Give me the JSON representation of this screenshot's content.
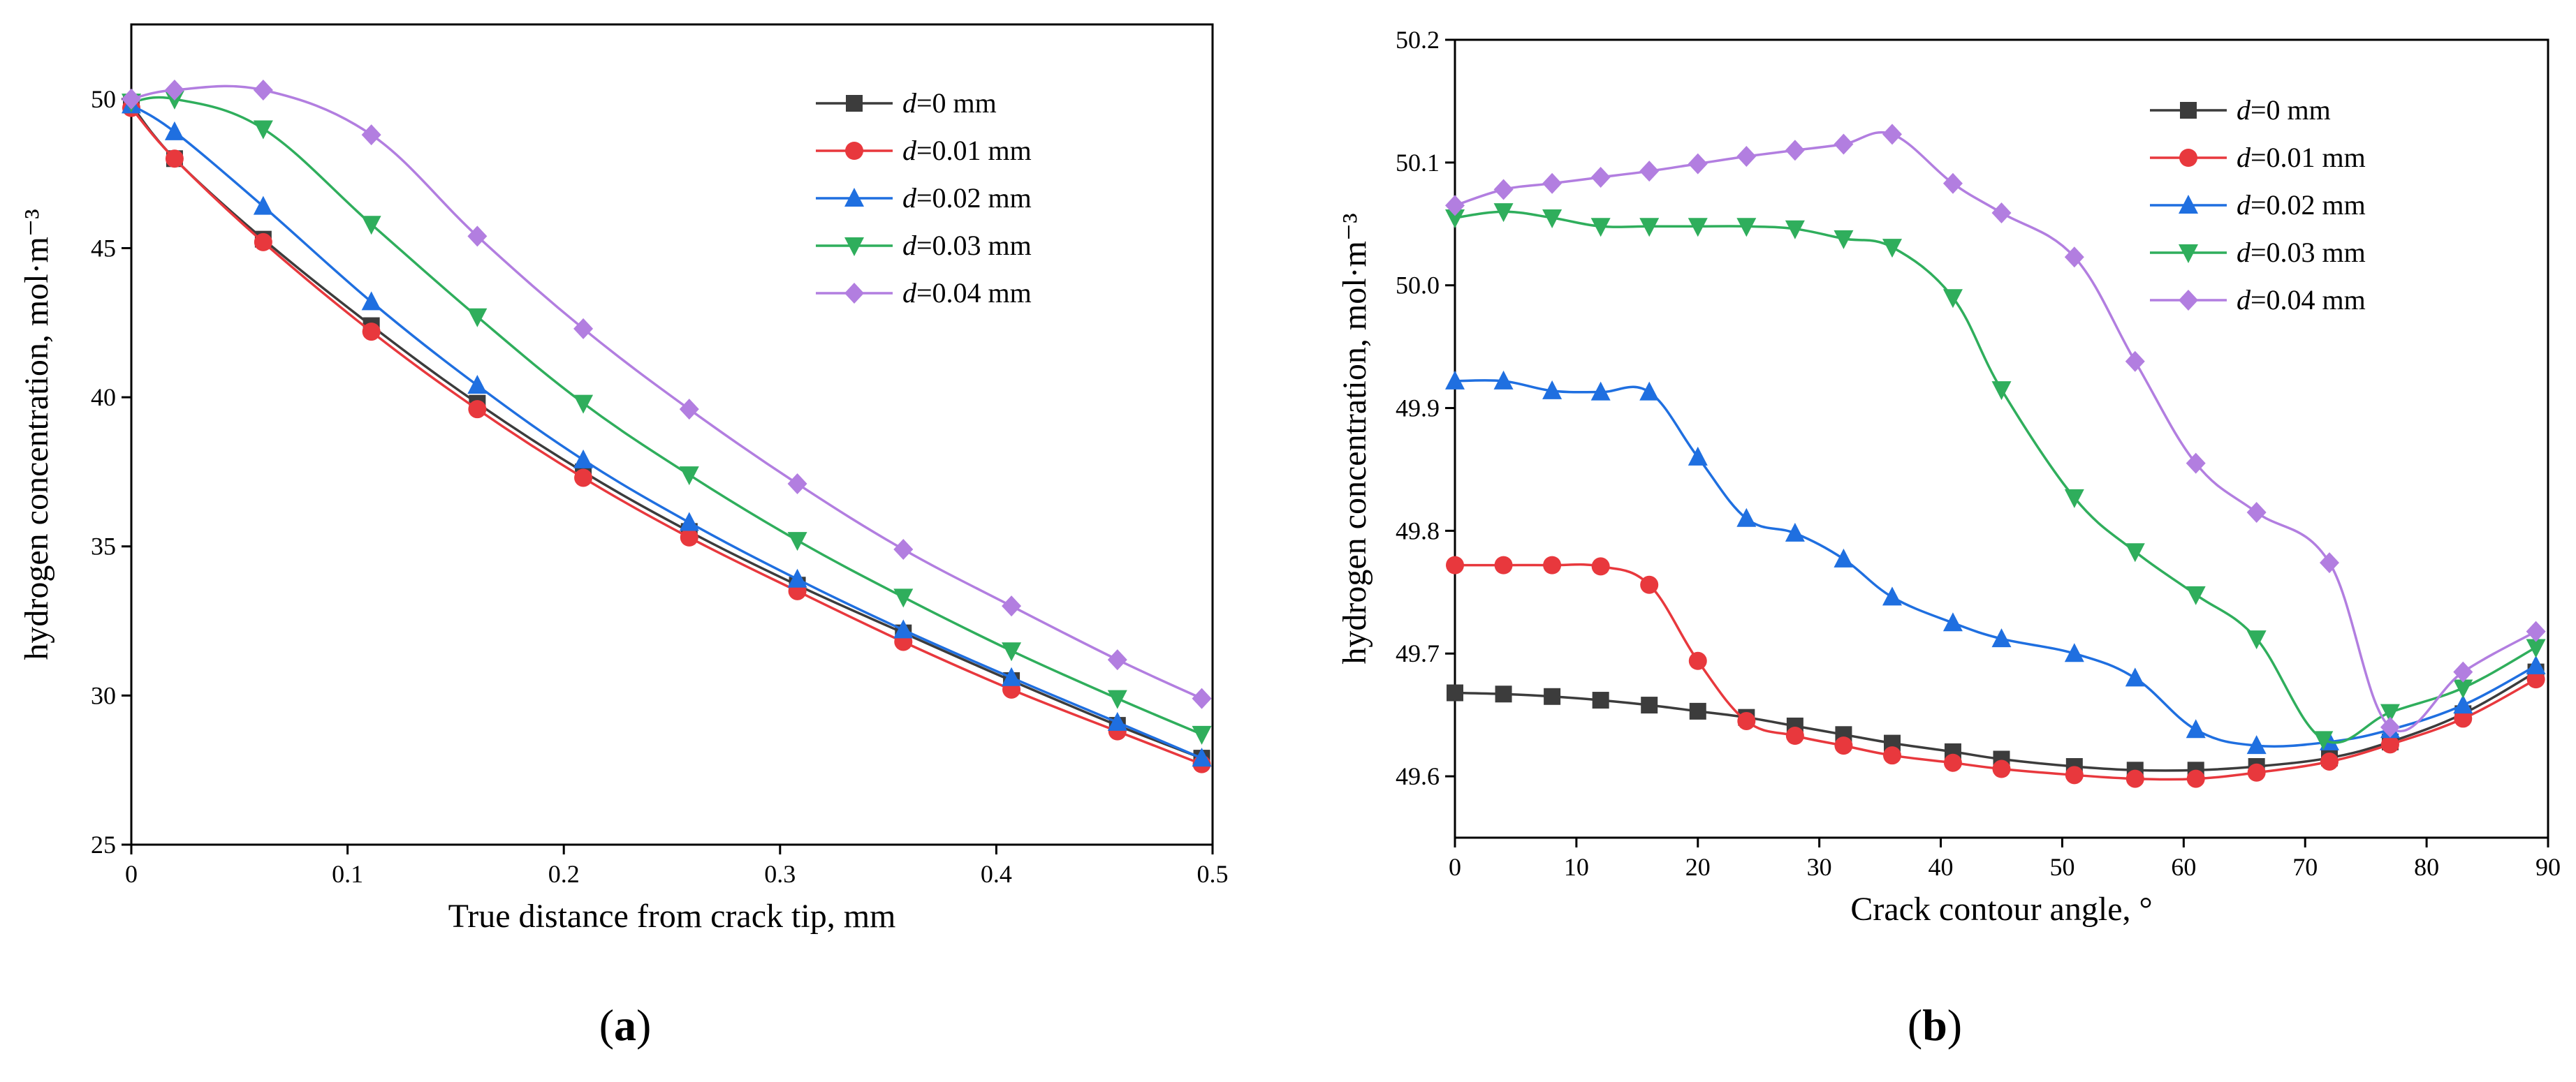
{
  "chart_data": [
    {
      "type": "line",
      "panel_label": "(a)",
      "xlabel": "True distance from crack tip, mm",
      "ylabel": "hydrogen concentration, mol·m⁻³",
      "xlim": [
        0,
        0.5
      ],
      "ylim": [
        25,
        52.5
      ],
      "xticks": [
        0,
        0.1,
        0.2,
        0.3,
        0.4,
        0.5
      ],
      "xtick_labels": [
        "0",
        "0.1",
        "0.2",
        "0.3",
        "0.4",
        "0.5"
      ],
      "yticks": [
        25,
        30,
        35,
        40,
        45,
        50
      ],
      "ytick_labels": [
        "25",
        "30",
        "35",
        "40",
        "45",
        "50"
      ],
      "legend_position": "top-right",
      "x": [
        0,
        0.02,
        0.061,
        0.111,
        0.16,
        0.209,
        0.258,
        0.308,
        0.357,
        0.407,
        0.456,
        0.495
      ],
      "series": [
        {
          "name": "d=0 mm",
          "prefix": "d",
          "suffix": "=0 mm",
          "color": "#3c3c3c",
          "marker": "square",
          "values": [
            49.8,
            48.0,
            45.3,
            42.4,
            39.8,
            37.5,
            35.5,
            33.7,
            32.1,
            30.5,
            29.0,
            27.9
          ]
        },
        {
          "name": "d=0.01 mm",
          "prefix": "d",
          "suffix": "=0.01 mm",
          "color": "#e8383d",
          "marker": "circle",
          "values": [
            49.7,
            48.0,
            45.2,
            42.2,
            39.6,
            37.3,
            35.3,
            33.5,
            31.8,
            30.2,
            28.8,
            27.7
          ]
        },
        {
          "name": "d=0.02 mm",
          "prefix": "d",
          "suffix": "=0.02 mm",
          "color": "#1f6fe0",
          "marker": "triangle-up",
          "values": [
            49.8,
            48.9,
            46.4,
            43.2,
            40.4,
            37.9,
            35.8,
            33.9,
            32.2,
            30.6,
            29.1,
            27.9
          ]
        },
        {
          "name": "d=0.03 mm",
          "prefix": "d",
          "suffix": "=0.03 mm",
          "color": "#2fae5c",
          "marker": "triangle-down",
          "values": [
            49.9,
            50.0,
            49.0,
            45.8,
            42.7,
            39.8,
            37.4,
            35.2,
            33.3,
            31.5,
            29.9,
            28.7
          ]
        },
        {
          "name": "d=0.04 mm",
          "prefix": "d",
          "suffix": "=0.04 mm",
          "color": "#b27ee0",
          "marker": "diamond",
          "values": [
            50.0,
            50.3,
            50.3,
            48.8,
            45.4,
            42.3,
            39.6,
            37.1,
            34.9,
            33.0,
            31.2,
            29.9
          ]
        }
      ]
    },
    {
      "type": "line",
      "panel_label": "(b)",
      "xlabel": "Crack contour angle, °",
      "ylabel": "hydrogen concentration, mol·m⁻³",
      "xlim": [
        0,
        90
      ],
      "ylim": [
        49.55,
        50.2
      ],
      "xticks": [
        0,
        10,
        20,
        30,
        40,
        50,
        60,
        70,
        80,
        90
      ],
      "xtick_labels": [
        "0",
        "10",
        "20",
        "30",
        "40",
        "50",
        "60",
        "70",
        "80",
        "90"
      ],
      "yticks": [
        49.6,
        49.7,
        49.8,
        49.9,
        50.0,
        50.1,
        50.2
      ],
      "ytick_labels": [
        "49.6",
        "49.7",
        "49.8",
        "49.9",
        "50.0",
        "50.1",
        "50.2"
      ],
      "legend_position": "top-right",
      "series": [
        {
          "name": "d=0 mm",
          "prefix": "d",
          "suffix": "=0 mm",
          "color": "#3c3c3c",
          "marker": "square",
          "x": [
            0,
            4,
            8,
            12,
            16,
            20,
            24,
            28,
            32,
            36,
            41,
            45,
            51,
            56,
            61,
            66,
            72,
            77,
            83,
            89
          ],
          "values": [
            49.668,
            49.667,
            49.665,
            49.662,
            49.658,
            49.653,
            49.648,
            49.641,
            49.634,
            49.627,
            49.62,
            49.614,
            49.608,
            49.605,
            49.605,
            49.608,
            49.615,
            49.628,
            49.651,
            49.685
          ]
        },
        {
          "name": "d=0.01 mm",
          "prefix": "d",
          "suffix": "=0.01 mm",
          "color": "#e8383d",
          "marker": "circle",
          "x": [
            0,
            4,
            8,
            12,
            16,
            20,
            24,
            28,
            32,
            36,
            41,
            45,
            51,
            56,
            61,
            66,
            72,
            77,
            83,
            89
          ],
          "values": [
            49.772,
            49.772,
            49.772,
            49.771,
            49.756,
            49.694,
            49.645,
            49.633,
            49.625,
            49.617,
            49.611,
            49.606,
            49.601,
            49.598,
            49.598,
            49.603,
            49.612,
            49.626,
            49.647,
            49.679
          ]
        },
        {
          "name": "d=0.02 mm",
          "prefix": "d",
          "suffix": "=0.02 mm",
          "color": "#1f6fe0",
          "marker": "triangle-up",
          "x": [
            0,
            4,
            8,
            12,
            16,
            20,
            24,
            28,
            32,
            36,
            41,
            45,
            51,
            56,
            61,
            66,
            72,
            77,
            83,
            89
          ],
          "values": [
            49.922,
            49.922,
            49.914,
            49.913,
            49.913,
            49.86,
            49.81,
            49.798,
            49.777,
            49.746,
            49.725,
            49.712,
            49.7,
            49.68,
            49.638,
            49.625,
            49.628,
            49.638,
            49.658,
            49.69
          ]
        },
        {
          "name": "d=0.03 mm",
          "prefix": "d",
          "suffix": "=0.03 mm",
          "color": "#2fae5c",
          "marker": "triangle-down",
          "x": [
            0,
            4,
            8,
            12,
            16,
            20,
            24,
            28,
            32,
            36,
            41,
            45,
            51,
            56,
            61,
            66,
            71.5,
            77,
            83,
            89
          ],
          "values": [
            50.055,
            50.06,
            50.055,
            50.048,
            50.048,
            50.048,
            50.048,
            50.046,
            50.038,
            50.031,
            49.99,
            49.915,
            49.827,
            49.783,
            49.748,
            49.712,
            49.63,
            49.652,
            49.672,
            49.705
          ]
        },
        {
          "name": "d=0.04 mm",
          "prefix": "d",
          "suffix": "=0.04 mm",
          "color": "#b27ee0",
          "marker": "diamond",
          "x": [
            0,
            4,
            8,
            12,
            16,
            20,
            24,
            28,
            32,
            36,
            41,
            45,
            51,
            56,
            61,
            66,
            72,
            77,
            83,
            89
          ],
          "values": [
            50.065,
            50.078,
            50.083,
            50.088,
            50.093,
            50.099,
            50.105,
            50.11,
            50.115,
            50.123,
            50.083,
            50.059,
            50.023,
            49.938,
            49.855,
            49.815,
            49.774,
            49.64,
            49.685,
            49.718
          ]
        }
      ]
    }
  ]
}
